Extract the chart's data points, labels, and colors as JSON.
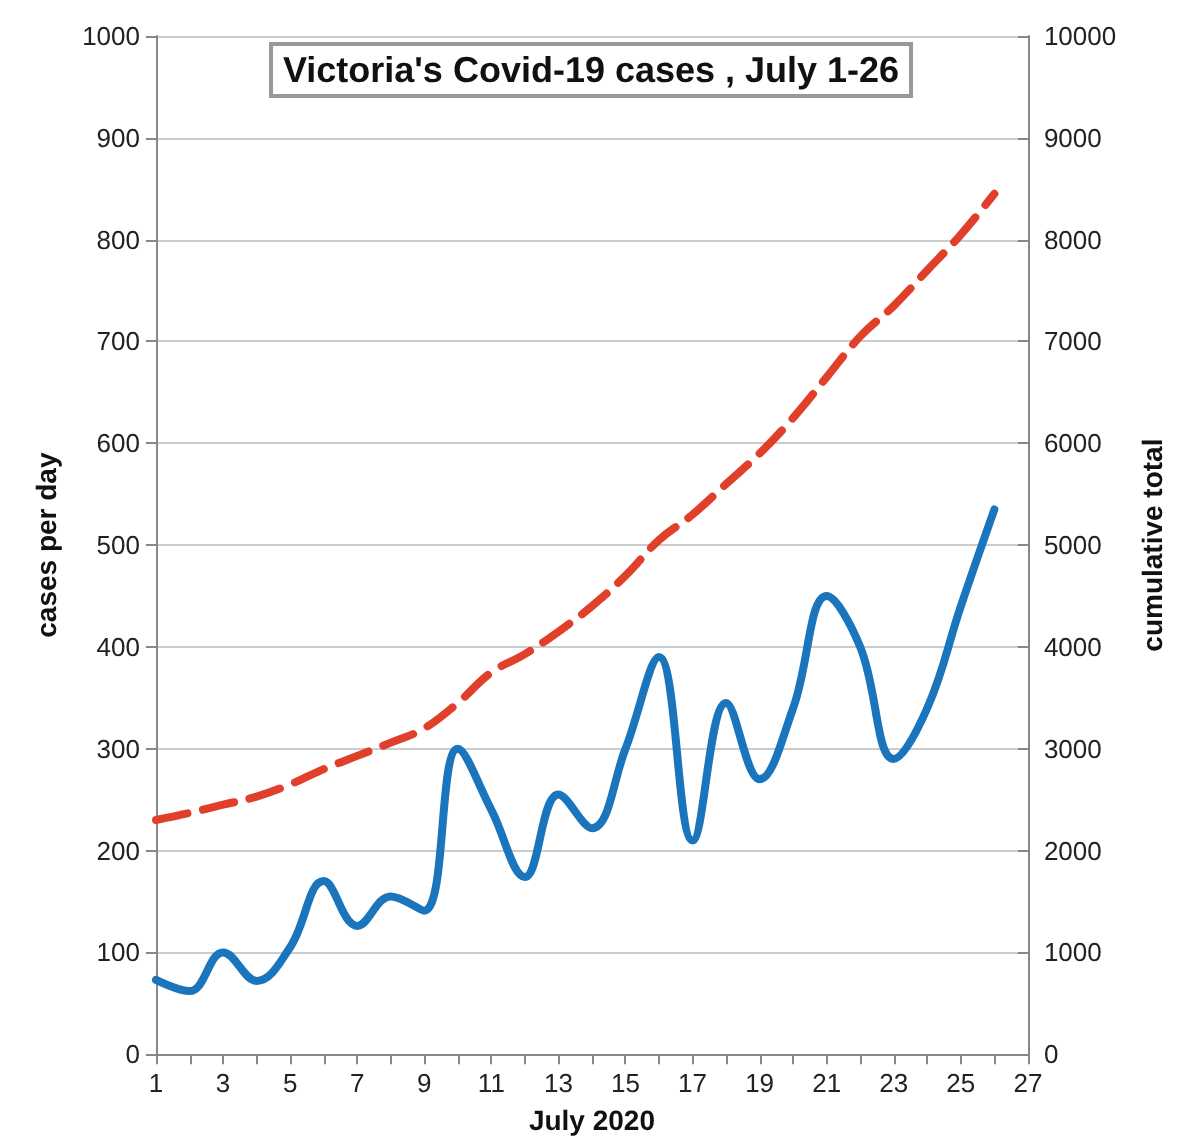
{
  "chart_data": {
    "type": "line",
    "title": "Victoria's Covid-19 cases , July 1-26",
    "xlabel": "July 2020",
    "ylabel": "cases per day",
    "y2label": "cumulative total",
    "x": [
      1,
      2,
      3,
      4,
      5,
      6,
      7,
      8,
      9,
      10,
      11,
      12,
      13,
      14,
      15,
      16,
      17,
      18,
      19,
      20,
      21,
      22,
      23,
      24,
      25,
      26
    ],
    "series": [
      {
        "color": "#1a75bc",
        "line_style": "solid",
        "values": [
          73,
          62,
          100,
          72,
          105,
          170,
          126,
          155,
          141,
          300,
          240,
          174,
          255,
          222,
          300,
          390,
          210,
          345,
          270,
          340,
          450,
          400,
          290,
          340,
          440,
          535
        ]
      },
      {
        "color": "#e0402a",
        "line_style": "dashed",
        "axis": "y2",
        "values": [
          2300,
          2370,
          2450,
          2530,
          2650,
          2800,
          2930,
          3060,
          3200,
          3450,
          3750,
          3930,
          4150,
          4400,
          4700,
          5050,
          5300,
          5600,
          5900,
          6250,
          6650,
          7050,
          7350,
          7700,
          8050,
          8450
        ]
      }
    ],
    "xlim": [
      1,
      27
    ],
    "xticks": [
      1,
      {
        "value": 2,
        "label": null
      },
      3,
      {
        "value": 4,
        "label": null
      },
      5,
      {
        "value": 6,
        "label": null
      },
      7,
      {
        "value": 8,
        "label": null
      },
      9,
      {
        "value": 10,
        "label": null
      },
      11,
      {
        "value": 12,
        "label": null
      },
      13,
      {
        "value": 14,
        "label": null
      },
      15,
      {
        "value": 16,
        "label": null
      },
      17,
      {
        "value": 18,
        "label": null
      },
      19,
      {
        "value": 20,
        "label": null
      },
      21,
      {
        "value": 22,
        "label": null
      },
      23,
      {
        "value": 24,
        "label": null
      },
      25,
      {
        "value": 26,
        "label": null
      },
      27
    ],
    "ylim": [
      0,
      1000
    ],
    "yticks": [
      0,
      100,
      200,
      300,
      400,
      500,
      600,
      700,
      800,
      900,
      1000
    ],
    "y2lim": [
      0,
      10000
    ],
    "y2ticks": [
      0,
      1000,
      2000,
      3000,
      4000,
      5000,
      6000,
      7000,
      8000,
      9000,
      10000
    ],
    "grid": "y",
    "marker": "none"
  }
}
